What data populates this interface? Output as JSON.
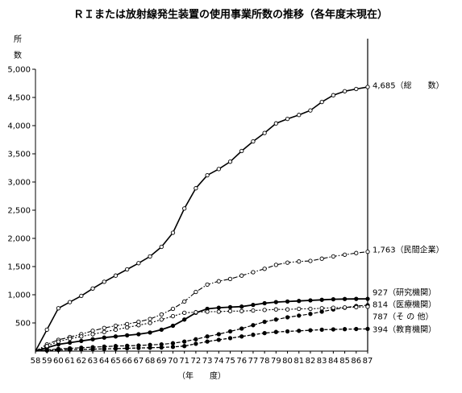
{
  "chart_data": {
    "type": "line",
    "title": "ＲＩまたは放射線発生装置の使用事業所数の推移（各年度末現在）",
    "ylabel": [
      "所",
      "数"
    ],
    "xlabel": "（年　　度）",
    "ylim": [
      0,
      5000
    ],
    "yticks": [
      "500",
      "1,000",
      "1,500",
      "2,000",
      "2,500",
      "3,000",
      "3,500",
      "4,000",
      "4,500",
      "5,000"
    ],
    "ytick_values": [
      500,
      1000,
      1500,
      2000,
      2500,
      3000,
      3500,
      4000,
      4500,
      5000
    ],
    "x": [
      "58",
      "59",
      "60",
      "61",
      "62",
      "63",
      "64",
      "65",
      "66",
      "67",
      "68",
      "69",
      "70",
      "71",
      "72",
      "73",
      "74",
      "75",
      "76",
      "77",
      "78",
      "79",
      "80",
      "81",
      "82",
      "83",
      "84",
      "85",
      "86",
      "87"
    ],
    "series": [
      {
        "label": "総　　数",
        "end_value": "4,685",
        "marker": "open",
        "values": [
          0,
          380,
          760,
          870,
          980,
          1110,
          1230,
          1340,
          1450,
          1560,
          1680,
          1850,
          2100,
          2530,
          2890,
          3120,
          3230,
          3360,
          3550,
          3720,
          3870,
          4040,
          4120,
          4190,
          4270,
          4420,
          4540,
          4610,
          4650,
          4685
        ]
      },
      {
        "label": "民間企業",
        "end_value": "1,763",
        "marker": "open",
        "values": [
          0,
          120,
          200,
          250,
          300,
          360,
          410,
          450,
          480,
          520,
          570,
          650,
          750,
          880,
          1050,
          1180,
          1240,
          1280,
          1340,
          1400,
          1460,
          1530,
          1570,
          1590,
          1600,
          1640,
          1680,
          1710,
          1740,
          1763
        ]
      },
      {
        "label": "研究機関",
        "end_value": "927",
        "marker": "filled",
        "values": [
          0,
          60,
          120,
          150,
          180,
          210,
          240,
          260,
          280,
          300,
          330,
          380,
          450,
          560,
          680,
          750,
          770,
          780,
          790,
          820,
          850,
          870,
          880,
          890,
          900,
          910,
          920,
          925,
          926,
          927
        ]
      },
      {
        "label": "医療機関",
        "end_value": "814",
        "marker": "filled",
        "values": [
          0,
          20,
          40,
          50,
          60,
          70,
          80,
          90,
          95,
          100,
          110,
          120,
          140,
          170,
          210,
          260,
          300,
          350,
          400,
          460,
          520,
          560,
          600,
          630,
          660,
          700,
          740,
          770,
          800,
          814
        ]
      },
      {
        "label": "そ の 他",
        "end_value": "787",
        "marker": "open",
        "values": [
          0,
          90,
          170,
          220,
          260,
          300,
          340,
          380,
          420,
          460,
          500,
          560,
          620,
          680,
          690,
          700,
          700,
          710,
          710,
          720,
          730,
          740,
          740,
          750,
          750,
          760,
          770,
          775,
          780,
          787
        ]
      },
      {
        "label": "教育機関",
        "end_value": "394",
        "marker": "filled",
        "values": [
          0,
          10,
          20,
          25,
          30,
          35,
          40,
          45,
          50,
          55,
          60,
          65,
          75,
          90,
          130,
          170,
          200,
          230,
          260,
          290,
          320,
          340,
          350,
          360,
          370,
          380,
          385,
          390,
          392,
          394
        ]
      }
    ]
  }
}
